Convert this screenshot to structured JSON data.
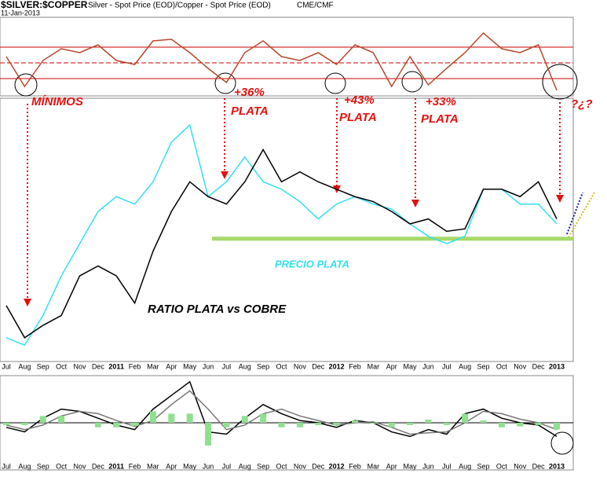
{
  "chart_data": [
    {
      "type": "line",
      "title": "$SILVER:$COPPER",
      "subtitle": "Silver - Spot Price (EOD)/Copper - Spot Price (EOD)",
      "source": "CME/CMF",
      "date": "11-Jan-2013",
      "categories": [
        "Jul",
        "Aug",
        "Sep",
        "Oct",
        "Nov",
        "Dec",
        "2011",
        "Feb",
        "Mar",
        "Apr",
        "May",
        "Jun",
        "Jul",
        "Aug",
        "Sep",
        "Oct",
        "Nov",
        "Dec",
        "2012",
        "Feb",
        "Mar",
        "Apr",
        "May",
        "Jun",
        "Jul",
        "Aug",
        "Sep",
        "Oct",
        "Nov",
        "Dec",
        "2013"
      ],
      "ylim": [
        0,
        100
      ],
      "series": [
        {
          "name": "RATIO PLATA vs COBRE",
          "color": "#000000",
          "values": [
            21,
            8,
            13,
            17,
            33,
            37,
            33,
            22,
            43,
            59,
            71,
            65,
            62,
            71,
            84,
            71,
            75,
            71,
            68,
            65,
            63,
            59,
            54,
            56,
            51,
            52,
            68,
            68,
            65,
            71,
            56
          ]
        },
        {
          "name": "PRECIO PLATA",
          "color": "#33e0f0",
          "values": [
            8,
            5,
            17,
            33,
            46,
            59,
            65,
            62,
            71,
            87,
            94,
            65,
            71,
            81,
            71,
            68,
            63,
            56,
            62,
            65,
            62,
            60,
            54,
            49,
            46,
            49,
            68,
            68,
            62,
            62,
            54
          ]
        }
      ],
      "support_level": 48,
      "support_color": "#a6d96a",
      "annotations": [
        "MÍNIMOS",
        "+36%",
        "PLATA",
        "+43%",
        "PLATA",
        "+33%",
        "PLATA",
        "?¿?"
      ]
    },
    {
      "type": "line",
      "ylim": [
        0,
        100
      ],
      "levels": [
        62,
        42,
        22
      ],
      "level_color": "#cc0000",
      "series": [
        {
          "color": "#b5482a",
          "values": [
            50,
            12,
            45,
            60,
            55,
            65,
            45,
            40,
            70,
            72,
            55,
            35,
            17,
            55,
            70,
            50,
            45,
            55,
            40,
            65,
            55,
            12,
            50,
            14,
            35,
            55,
            80,
            60,
            55,
            65,
            7
          ]
        }
      ]
    },
    {
      "type": "line",
      "ylim": [
        -100,
        100
      ],
      "series": [
        {
          "color": "#000000",
          "values": [
            -10,
            -20,
            10,
            30,
            25,
            10,
            -5,
            -15,
            30,
            60,
            90,
            -20,
            -25,
            10,
            40,
            20,
            5,
            0,
            -10,
            5,
            0,
            -20,
            -30,
            -15,
            -25,
            20,
            30,
            10,
            0,
            -5,
            -30
          ]
        },
        {
          "color": "#777777",
          "values": [
            -5,
            -15,
            -5,
            15,
            25,
            20,
            5,
            -8,
            5,
            40,
            70,
            30,
            -15,
            -5,
            20,
            30,
            15,
            5,
            -5,
            0,
            2,
            -10,
            -25,
            -22,
            -20,
            0,
            25,
            20,
            8,
            0,
            -15
          ]
        },
        {
          "type": "bar",
          "color": "#90e090",
          "values": [
            -5,
            -5,
            15,
            15,
            0,
            -10,
            -10,
            -7,
            25,
            20,
            20,
            -50,
            -10,
            15,
            20,
            -10,
            -10,
            -5,
            -5,
            5,
            -2,
            -10,
            -5,
            7,
            -5,
            20,
            5,
            -10,
            -8,
            -5,
            -15
          ]
        }
      ]
    }
  ]
}
